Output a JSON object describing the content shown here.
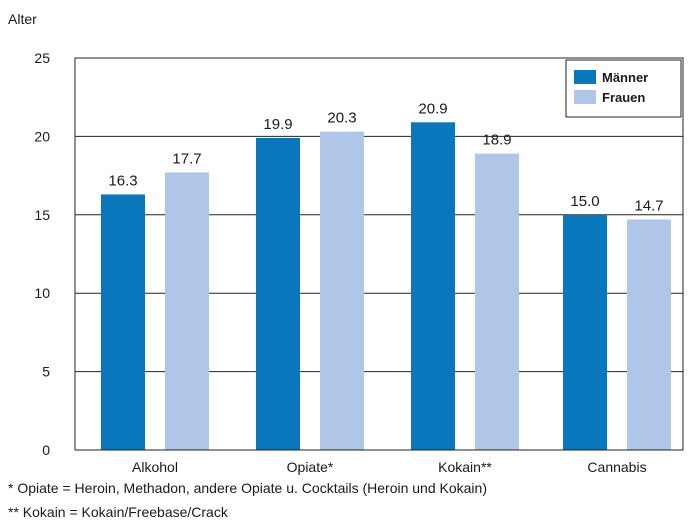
{
  "chart_data": {
    "type": "bar",
    "ylabel": "Alter",
    "ylim": [
      0,
      25
    ],
    "yticks": [
      0,
      5,
      10,
      15,
      20,
      25
    ],
    "categories": [
      "Alkohol",
      "Opiate*",
      "Kokain**",
      "Cannabis"
    ],
    "series": [
      {
        "name": "Männer",
        "color": "#0a77bd",
        "values": [
          16.3,
          19.9,
          20.9,
          15.0
        ]
      },
      {
        "name": "Frauen",
        "color": "#afc6e9",
        "values": [
          17.7,
          20.3,
          18.9,
          14.7
        ]
      }
    ],
    "value_labels": [
      [
        "16.3",
        "19.9",
        "20.9",
        "15.0"
      ],
      [
        "17.7",
        "20.3",
        "18.9",
        "14.7"
      ]
    ],
    "grid": true,
    "legend_position": "top-right"
  },
  "footnotes": [
    "* Opiate = Heroin, Methadon, andere Opiate u. Cocktails (Heroin und Kokain)",
    "** Kokain = Kokain/Freebase/Crack"
  ]
}
